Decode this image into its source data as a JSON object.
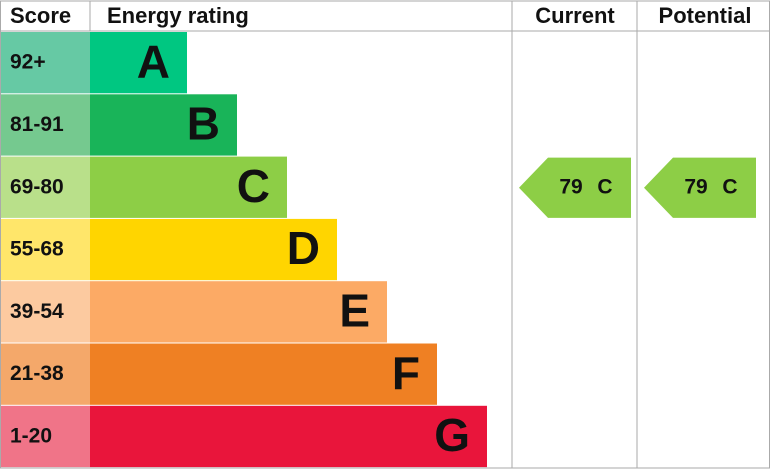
{
  "header": {
    "score": "Score",
    "rating": "Energy rating",
    "current": "Current",
    "potential": "Potential"
  },
  "rows": [
    {
      "score": "92+",
      "band": "A",
      "color": "#00c781",
      "score_color": "#66c9a4"
    },
    {
      "score": "81-91",
      "band": "B",
      "color": "#19b459",
      "score_color": "#75c98f"
    },
    {
      "score": "69-80",
      "band": "C",
      "color": "#8dce46",
      "score_color": "#b9e08a"
    },
    {
      "score": "55-68",
      "band": "D",
      "color": "#ffd500",
      "score_color": "#ffe66a"
    },
    {
      "score": "39-54",
      "band": "E",
      "color": "#fcaa65",
      "score_color": "#fccaa0"
    },
    {
      "score": "21-38",
      "band": "F",
      "color": "#ef8023",
      "score_color": "#f4a86a"
    },
    {
      "score": "1-20",
      "band": "G",
      "color": "#e9153b",
      "score_color": "#f07488"
    }
  ],
  "current": {
    "value": 79,
    "band": "C"
  },
  "potential": {
    "value": 79,
    "band": "C"
  }
}
